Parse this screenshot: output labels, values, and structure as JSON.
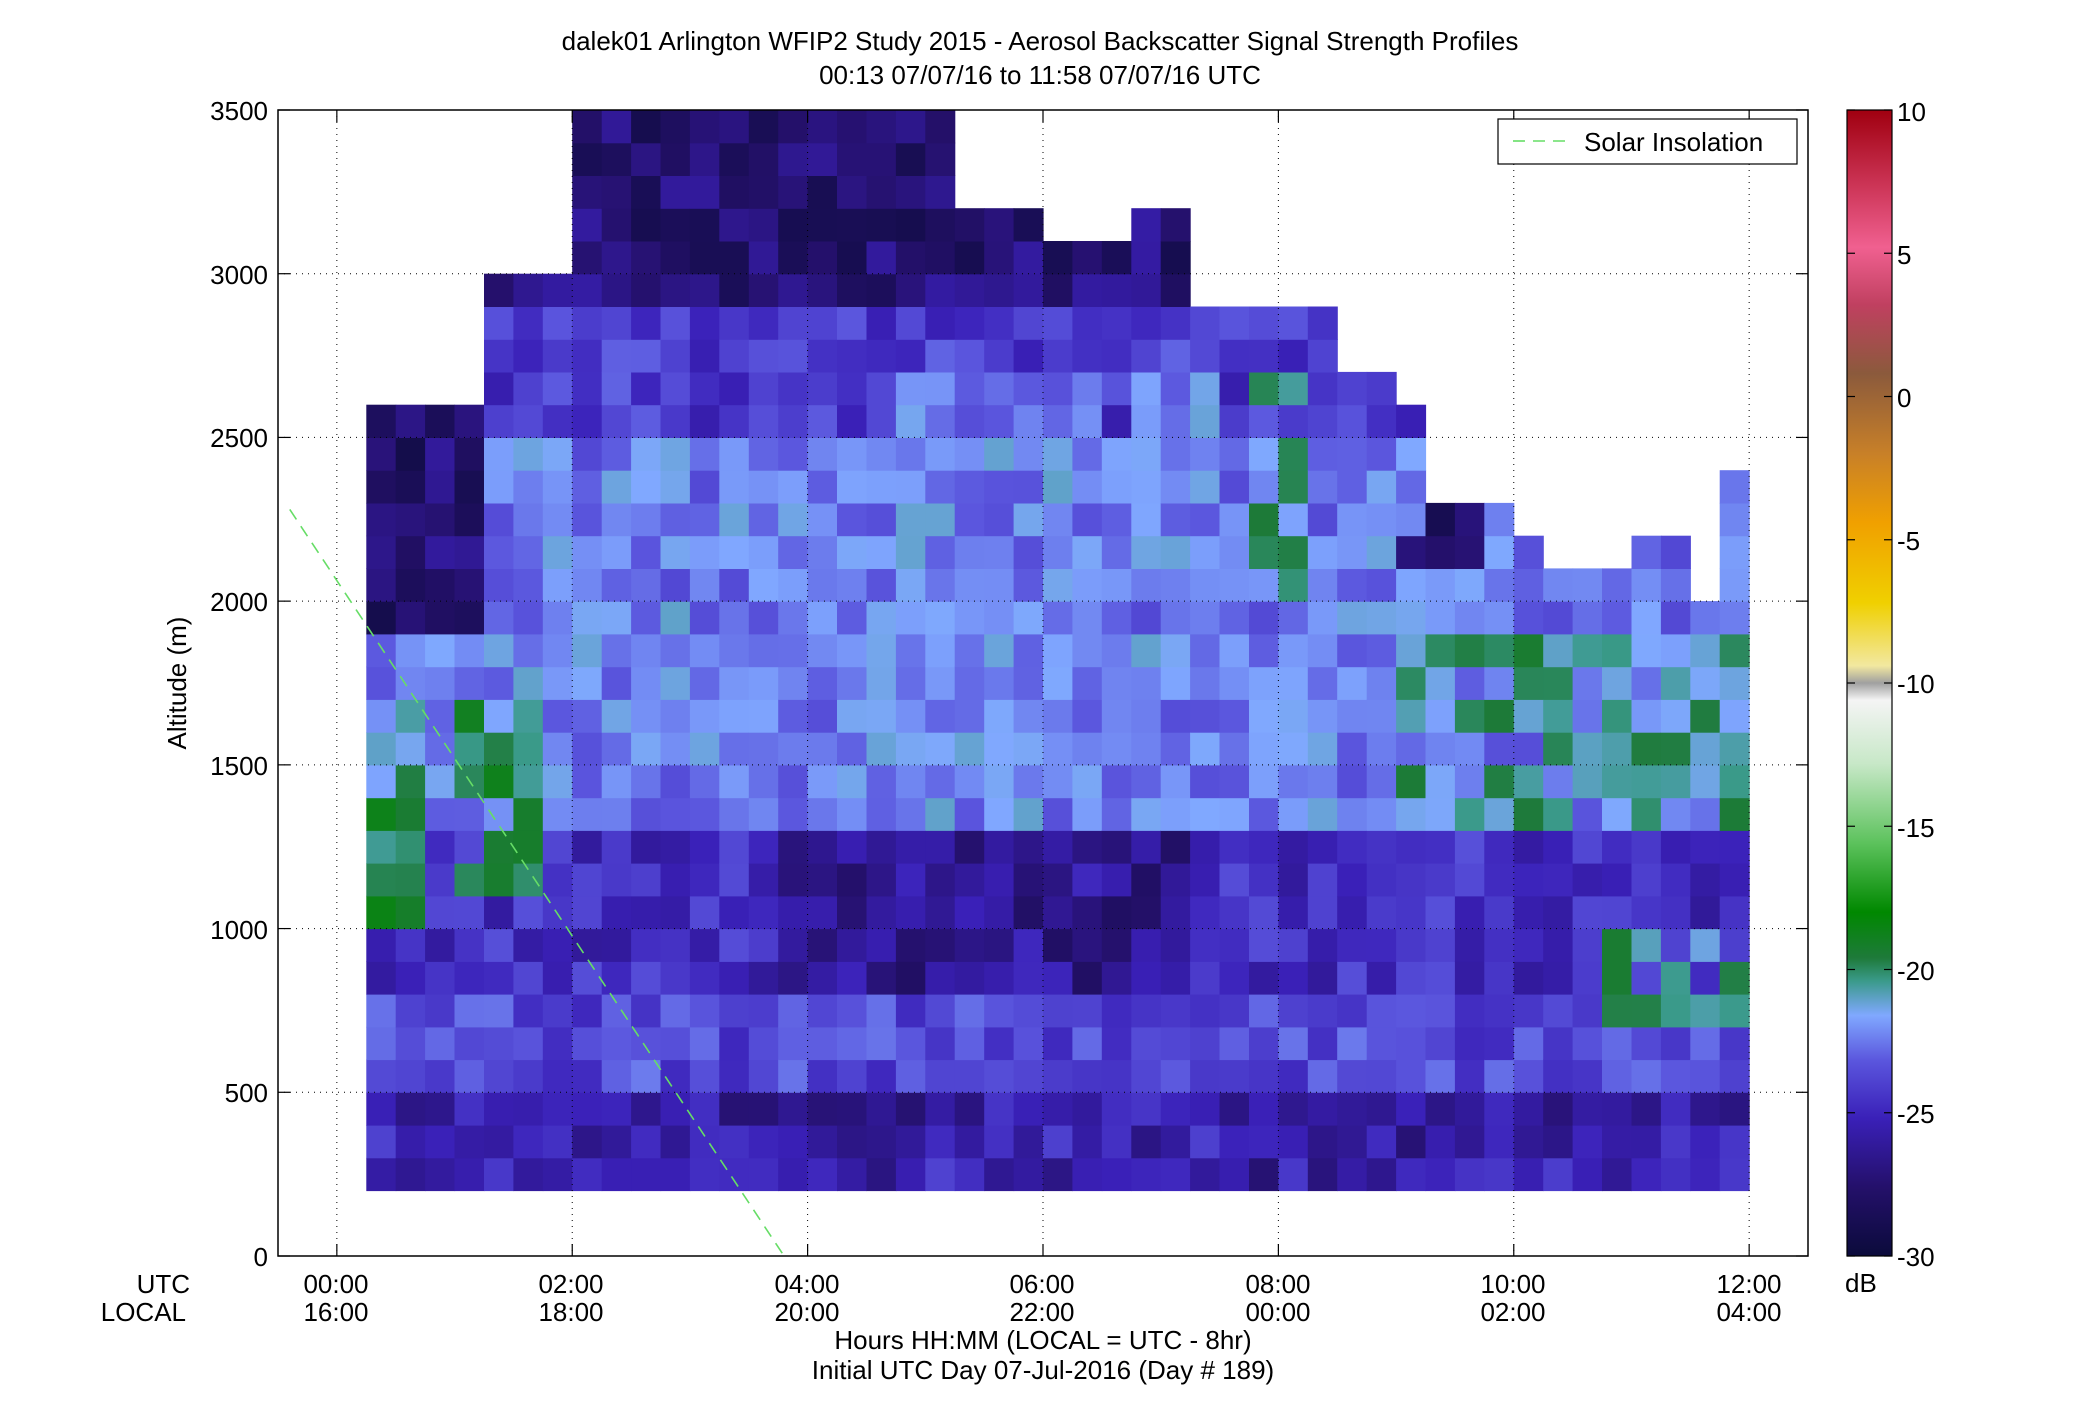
{
  "chart_data": {
    "type": "heatmap",
    "title_line1": "dalek01 Arlington WFIP2 Study 2015 - Aerosol Backscatter Signal Strength Profiles",
    "title_line2": "00:13 07/07/16 to 11:58 07/07/16  UTC",
    "ylabel": "Altitude (m)",
    "xlabel": "Hours HH:MM  (LOCAL = UTC - 8hr)",
    "footer": "Initial UTC Day 07-Jul-2016 (Day # 189)",
    "utc_row_label": "UTC",
    "local_row_label": "LOCAL",
    "xlim_hours": [
      -0.5,
      12.5
    ],
    "ylim": [
      0,
      3500
    ],
    "x_ticks_hours": [
      0,
      2,
      4,
      6,
      8,
      10,
      12
    ],
    "x_tick_labels_utc": [
      "00:00",
      "02:00",
      "04:00",
      "06:00",
      "08:00",
      "10:00",
      "12:00"
    ],
    "x_tick_labels_local": [
      "16:00",
      "18:00",
      "20:00",
      "22:00",
      "00:00",
      "02:00",
      "04:00"
    ],
    "y_ticks": [
      0,
      500,
      1000,
      1500,
      2000,
      2500,
      3000,
      3500
    ],
    "y_tick_labels": [
      "0",
      "500",
      "1000",
      "1500",
      "2000",
      "2500",
      "3000",
      "3500"
    ],
    "grid": "dotted",
    "legend_position": "top-right",
    "legend_entry": "Solar Insolation",
    "solar_line": {
      "color": "#66dd66",
      "style": "dashed",
      "x_hours": [
        -0.4,
        3.8
      ],
      "y": [
        2280,
        0
      ]
    },
    "colorbar": {
      "unit": "dB",
      "min": -30,
      "max": 10,
      "ticks": [
        10,
        5,
        0,
        -5,
        -10,
        -15,
        -20,
        -25,
        -30
      ],
      "tick_labels": [
        "10",
        "5",
        "0",
        "-5",
        "-10",
        "-15",
        "-20",
        "-25",
        "-30"
      ]
    },
    "cell_time_hours": 0.25,
    "cell_altitude_m": 100,
    "data_coverage": [
      {
        "t_start": 0.25,
        "t_end": 1.25,
        "alt_min": 200,
        "alt_max": 2600
      },
      {
        "t_start": 1.25,
        "t_end": 2.0,
        "alt_min": 200,
        "alt_max": 3000
      },
      {
        "t_start": 2.0,
        "t_end": 3.75,
        "alt_min": 200,
        "alt_max": 3500
      },
      {
        "t_start": 3.75,
        "t_end": 5.25,
        "alt_min": 200,
        "alt_max": 3500
      },
      {
        "t_start": 5.25,
        "t_end": 6.0,
        "alt_min": 200,
        "alt_max": 3200
      },
      {
        "t_start": 6.0,
        "t_end": 6.75,
        "alt_min": 200,
        "alt_max": 3100
      },
      {
        "t_start": 6.75,
        "t_end": 7.25,
        "alt_min": 200,
        "alt_max": 3200
      },
      {
        "t_start": 7.25,
        "t_end": 7.75,
        "alt_min": 200,
        "alt_max": 2900
      },
      {
        "t_start": 7.75,
        "t_end": 8.5,
        "alt_min": 200,
        "alt_max": 2900
      },
      {
        "t_start": 8.5,
        "t_end": 9.0,
        "alt_min": 200,
        "alt_max": 2700
      },
      {
        "t_start": 9.0,
        "t_end": 9.25,
        "alt_min": 200,
        "alt_max": 2600
      },
      {
        "t_start": 9.25,
        "t_end": 10.0,
        "alt_min": 200,
        "alt_max": 2300
      },
      {
        "t_start": 10.0,
        "t_end": 10.25,
        "alt_min": 200,
        "alt_max": 2200
      },
      {
        "t_start": 10.25,
        "t_end": 11.0,
        "alt_min": 200,
        "alt_max": 2100
      },
      {
        "t_start": 11.0,
        "t_end": 11.5,
        "alt_min": 200,
        "alt_max": 2200
      },
      {
        "t_start": 11.5,
        "t_end": 11.75,
        "alt_min": 200,
        "alt_max": 2000
      },
      {
        "t_start": 11.75,
        "t_end": 12.0,
        "alt_min": 200,
        "alt_max": 2400
      }
    ],
    "signal_regions_db": [
      {
        "t_start": 0.25,
        "t_end": 0.75,
        "alt_min": 900,
        "alt_max": 1500,
        "db": -20
      },
      {
        "t_start": 0.25,
        "t_end": 0.75,
        "alt_min": 1500,
        "alt_max": 1900,
        "db": -22
      },
      {
        "t_start": 0.25,
        "t_end": 1.25,
        "alt_min": 2000,
        "alt_max": 2600,
        "db": -28
      },
      {
        "t_start": 1.0,
        "t_end": 1.75,
        "alt_min": 1100,
        "alt_max": 1700,
        "db": -20
      },
      {
        "t_start": 2.0,
        "t_end": 4.5,
        "alt_min": 1500,
        "alt_max": 2300,
        "db": -23
      },
      {
        "t_start": 3.75,
        "t_end": 7.0,
        "alt_min": 800,
        "alt_max": 1300,
        "db": -27
      },
      {
        "t_start": 4.5,
        "t_end": 7.5,
        "alt_min": 2100,
        "alt_max": 2700,
        "db": -23
      },
      {
        "t_start": 7.75,
        "t_end": 8.25,
        "alt_min": 2000,
        "alt_max": 2700,
        "db": -21
      },
      {
        "t_start": 2.0,
        "t_end": 5.25,
        "alt_min": 3000,
        "alt_max": 3500,
        "db": -28
      },
      {
        "t_start": 9.0,
        "t_end": 12.0,
        "alt_min": 1300,
        "alt_max": 1900,
        "db": -21
      },
      {
        "t_start": 10.75,
        "t_end": 12.0,
        "alt_min": 700,
        "alt_max": 1000,
        "db": -21
      },
      {
        "t_start": 9.0,
        "t_end": 10.0,
        "alt_min": 2100,
        "alt_max": 2300,
        "db": -28
      },
      {
        "t_start": 0.25,
        "t_end": 12.0,
        "alt_min": 200,
        "alt_max": 400,
        "db": -26
      }
    ]
  }
}
